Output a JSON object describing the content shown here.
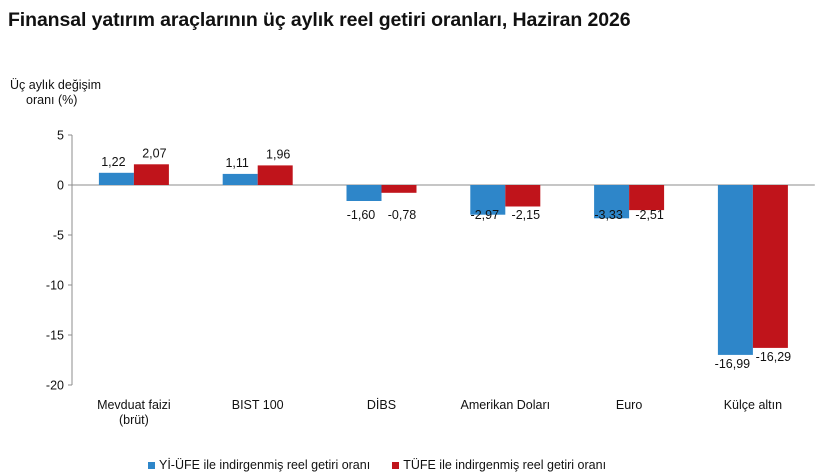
{
  "chart_data": {
    "type": "bar",
    "title": "Finansal yatırım araçlarının üç aylık reel getiri oranları, Haziran 2026",
    "ylabel_lines": [
      "Üç aylık değişim",
      "oranı (%)"
    ],
    "xlabel": "",
    "ylim": [
      -20,
      5
    ],
    "yticks": [
      5,
      0,
      -5,
      -10,
      -15,
      -20
    ],
    "grid": false,
    "legend_position": "bottom",
    "categories": [
      [
        "Mevduat faizi",
        "(brüt)"
      ],
      [
        "BIST 100"
      ],
      [
        "DİBS"
      ],
      [
        "Amerikan Doları"
      ],
      [
        "Euro"
      ],
      [
        "Külçe altın"
      ]
    ],
    "series": [
      {
        "name": "Yİ-ÜFE ile indirgenmiş reel getiri oranı",
        "color": "#2e86c9",
        "values": [
          1.22,
          1.11,
          -1.6,
          -2.97,
          -3.33,
          -16.99
        ],
        "labels": [
          "1,22",
          "1,11",
          "-1,60",
          "-2,97",
          "-3,33",
          "-16,99"
        ]
      },
      {
        "name": "TÜFE ile indirgenmiş reel getiri oranı",
        "color": "#c0141b",
        "values": [
          2.07,
          1.96,
          -0.78,
          -2.15,
          -2.51,
          -16.29
        ],
        "labels": [
          "2,07",
          "1,96",
          "-0,78",
          "-2,15",
          "-2,51",
          "-16,29"
        ]
      }
    ]
  }
}
